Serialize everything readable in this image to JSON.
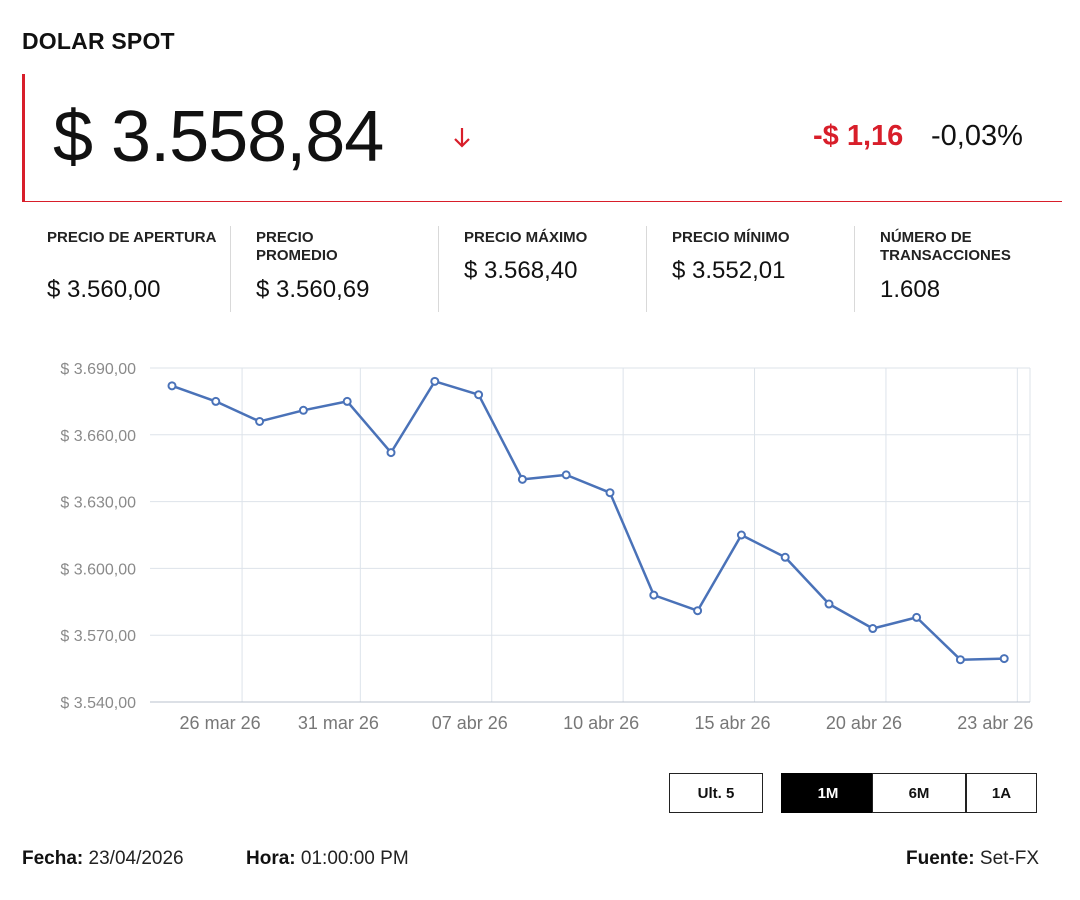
{
  "title": "DOLAR SPOT",
  "price": "$ 3.558,84",
  "change_abs": "-$ 1,16",
  "change_pct": "-0,03%",
  "direction_icon": "arrow-down-icon",
  "colors": {
    "accent": "#d81e2a",
    "line": "#4a72b8",
    "grid": "#dde3ea"
  },
  "stats": [
    {
      "label": "PRECIO DE APERTURA",
      "value": "$ 3.560,00"
    },
    {
      "label": "PRECIO PROMEDIO",
      "value": "$ 3.560,69"
    },
    {
      "label": "PRECIO MÁXIMO",
      "value": "$ 3.568,40"
    },
    {
      "label": "PRECIO MÍNIMO",
      "value": "$ 3.552,01"
    },
    {
      "label": "NÚMERO DE TRANSACCIONES",
      "value": "1.608"
    }
  ],
  "chart_data": {
    "type": "line",
    "title": "",
    "xlabel": "",
    "ylabel": "",
    "grid": true,
    "ylim": [
      3540,
      3690
    ],
    "y_ticks": [
      3690,
      3660,
      3630,
      3600,
      3570,
      3540
    ],
    "y_tick_labels": [
      "$ 3.690,00",
      "$ 3.660,00",
      "$ 3.630,00",
      "$ 3.600,00",
      "$ 3.570,00",
      "$ 3.540,00"
    ],
    "x_tick_labels": [
      "26 mar 26",
      "31 mar 26",
      "07 abr 26",
      "10 abr 26",
      "15 abr 26",
      "20 abr 26",
      "23 abr 26"
    ],
    "x_tick_index": [
      1.6,
      4.3,
      7.3,
      10.3,
      13.3,
      16.3,
      19.3
    ],
    "series": [
      {
        "name": "",
        "values": [
          3682,
          3675,
          3666,
          3671,
          3675,
          3652,
          3684,
          3678,
          3640,
          3642,
          3634,
          3588,
          3581,
          3615,
          3605,
          3584,
          3573,
          3578,
          3559,
          3559.5
        ]
      }
    ]
  },
  "ranges": [
    {
      "label": "Ult. 5",
      "active": false
    },
    {
      "label": "1M",
      "active": true
    },
    {
      "label": "6M",
      "active": false
    },
    {
      "label": "1A",
      "active": false
    }
  ],
  "footer": {
    "fecha_label": "Fecha:",
    "fecha_value": "23/04/2026",
    "hora_label": "Hora:",
    "hora_value": "01:00:00 PM",
    "fuente_label": "Fuente:",
    "fuente_value": "Set-FX"
  }
}
